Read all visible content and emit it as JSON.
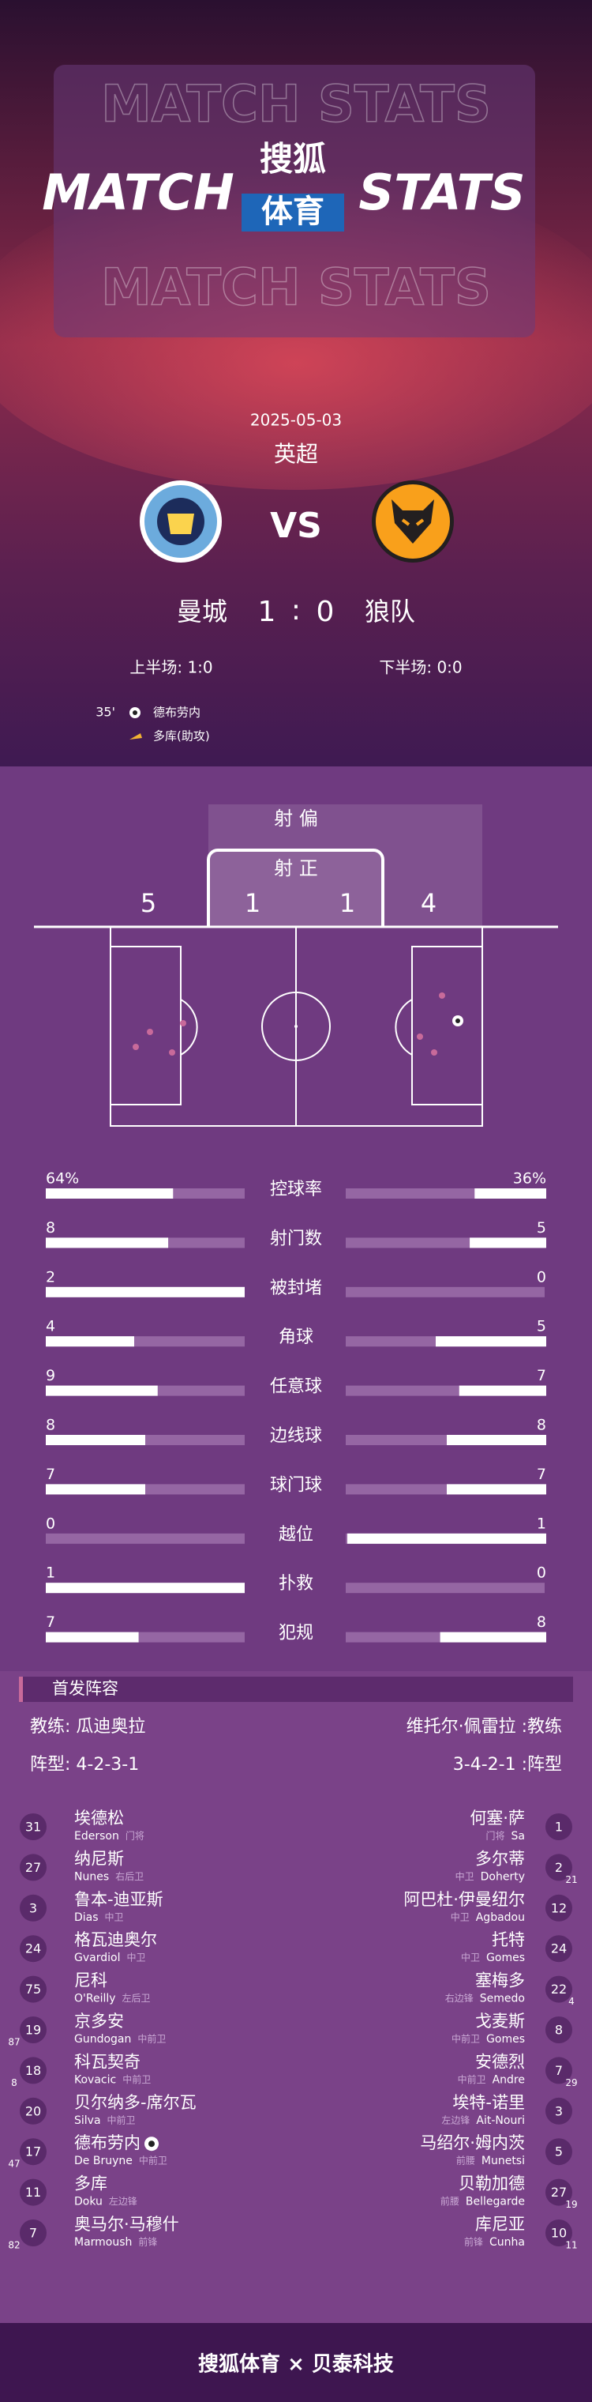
{
  "header": {
    "watermark": "MATCH STATS",
    "left": "MATCH",
    "right": "STATS",
    "logo_top": "搜狐",
    "logo_bottom": "体育"
  },
  "match": {
    "date": "2025-05-03",
    "league": "英超",
    "vs": "VS",
    "home": "曼城",
    "away": "狼队",
    "home_score": 1,
    "separator": ":",
    "away_score": 0,
    "first_half": "上半场: 1:0",
    "second_half": "下半场: 0:0",
    "events": [
      {
        "minute": "35'",
        "scorer": "德布劳内",
        "assist": "多库(助攻)"
      }
    ]
  },
  "shots": {
    "off_label": "射 偏",
    "on_label": "射 正",
    "home_off": 5,
    "home_on": 1,
    "away_on": 1,
    "away_off": 4
  },
  "stats": [
    {
      "label": "控球率",
      "values": [
        64,
        36
      ],
      "value_labels": [
        "64%",
        "36%"
      ]
    },
    {
      "label": "射门数",
      "values": [
        8,
        5
      ]
    },
    {
      "label": "被封堵",
      "values": [
        2,
        0
      ]
    },
    {
      "label": "角球",
      "values": [
        4,
        5
      ]
    },
    {
      "label": "任意球",
      "values": [
        9,
        7
      ]
    },
    {
      "label": "边线球",
      "values": [
        8,
        8
      ]
    },
    {
      "label": "球门球",
      "values": [
        7,
        7
      ]
    },
    {
      "label": "越位",
      "values": [
        0,
        1
      ]
    },
    {
      "label": "扑救",
      "values": [
        1,
        0
      ]
    },
    {
      "label": "犯规",
      "values": [
        7,
        8
      ]
    }
  ],
  "lineup": {
    "title": "首发阵容",
    "home_coach": "教练: 瓜迪奥拉",
    "away_coach": "维托尔·佩雷拉 :教练",
    "home_formation": "阵型: 4-2-3-1",
    "away_formation": "3-4-2-1 :阵型",
    "home": [
      {
        "number": 31,
        "name": "埃德松",
        "en": "Ederson",
        "pos": "门将"
      },
      {
        "number": 27,
        "name": "纳尼斯",
        "en": "Nunes",
        "pos": "右后卫"
      },
      {
        "number": 3,
        "name": "鲁本-迪亚斯",
        "en": "Dias",
        "pos": "中卫"
      },
      {
        "number": 24,
        "name": "格瓦迪奥尔",
        "en": "Gvardiol",
        "pos": "中卫"
      },
      {
        "number": 75,
        "name": "尼科",
        "en": "O'Reilly",
        "pos": "左后卫"
      },
      {
        "number": 19,
        "sub": 87,
        "name": "京多安",
        "en": "Gundogan",
        "pos": "中前卫"
      },
      {
        "number": 18,
        "sub": 8,
        "name": "科瓦契奇",
        "en": "Kovacic",
        "pos": "中前卫"
      },
      {
        "number": 20,
        "name": "贝尔纳多-席尔瓦",
        "en": "Silva",
        "pos": "中前卫"
      },
      {
        "number": 17,
        "sub": 47,
        "name": "德布劳内",
        "en": "De Bruyne",
        "pos": "中前卫",
        "scored": true
      },
      {
        "number": 11,
        "name": "多库",
        "en": "Doku",
        "pos": "左边锋"
      },
      {
        "number": 7,
        "sub": 82,
        "name": "奥马尔·马穆什",
        "en": "Marmoush",
        "pos": "前锋"
      }
    ],
    "away": [
      {
        "number": 1,
        "name": "何塞·萨",
        "en": "Sa",
        "pos": "门将"
      },
      {
        "number": 2,
        "sub": 21,
        "name": "多尔蒂",
        "en": "Doherty",
        "pos": "中卫"
      },
      {
        "number": 12,
        "name": "阿巴杜·伊曼纽尔",
        "en": "Agbadou",
        "pos": "中卫"
      },
      {
        "number": 24,
        "name": "托特",
        "en": "Gomes",
        "pos": "中卫"
      },
      {
        "number": 22,
        "sub": 4,
        "name": "塞梅多",
        "en": "Semedo",
        "pos": "右边锋"
      },
      {
        "number": 8,
        "name": "戈麦斯",
        "en": "Gomes",
        "pos": "中前卫"
      },
      {
        "number": 7,
        "sub": 29,
        "name": "安德烈",
        "en": "Andre",
        "pos": "中前卫"
      },
      {
        "number": 3,
        "name": "埃特-诺里",
        "en": "Ait-Nouri",
        "pos": "左边锋"
      },
      {
        "number": 5,
        "name": "马绍尔·姆内茨",
        "en": "Munetsi",
        "pos": "前腰"
      },
      {
        "number": 27,
        "sub": 19,
        "name": "贝勒加德",
        "en": "Bellegarde",
        "pos": "前腰"
      },
      {
        "number": 10,
        "sub": 11,
        "name": "库尼亚",
        "en": "Cunha",
        "pos": "前锋"
      }
    ]
  },
  "footer": "搜狐体育 × 贝泰科技"
}
